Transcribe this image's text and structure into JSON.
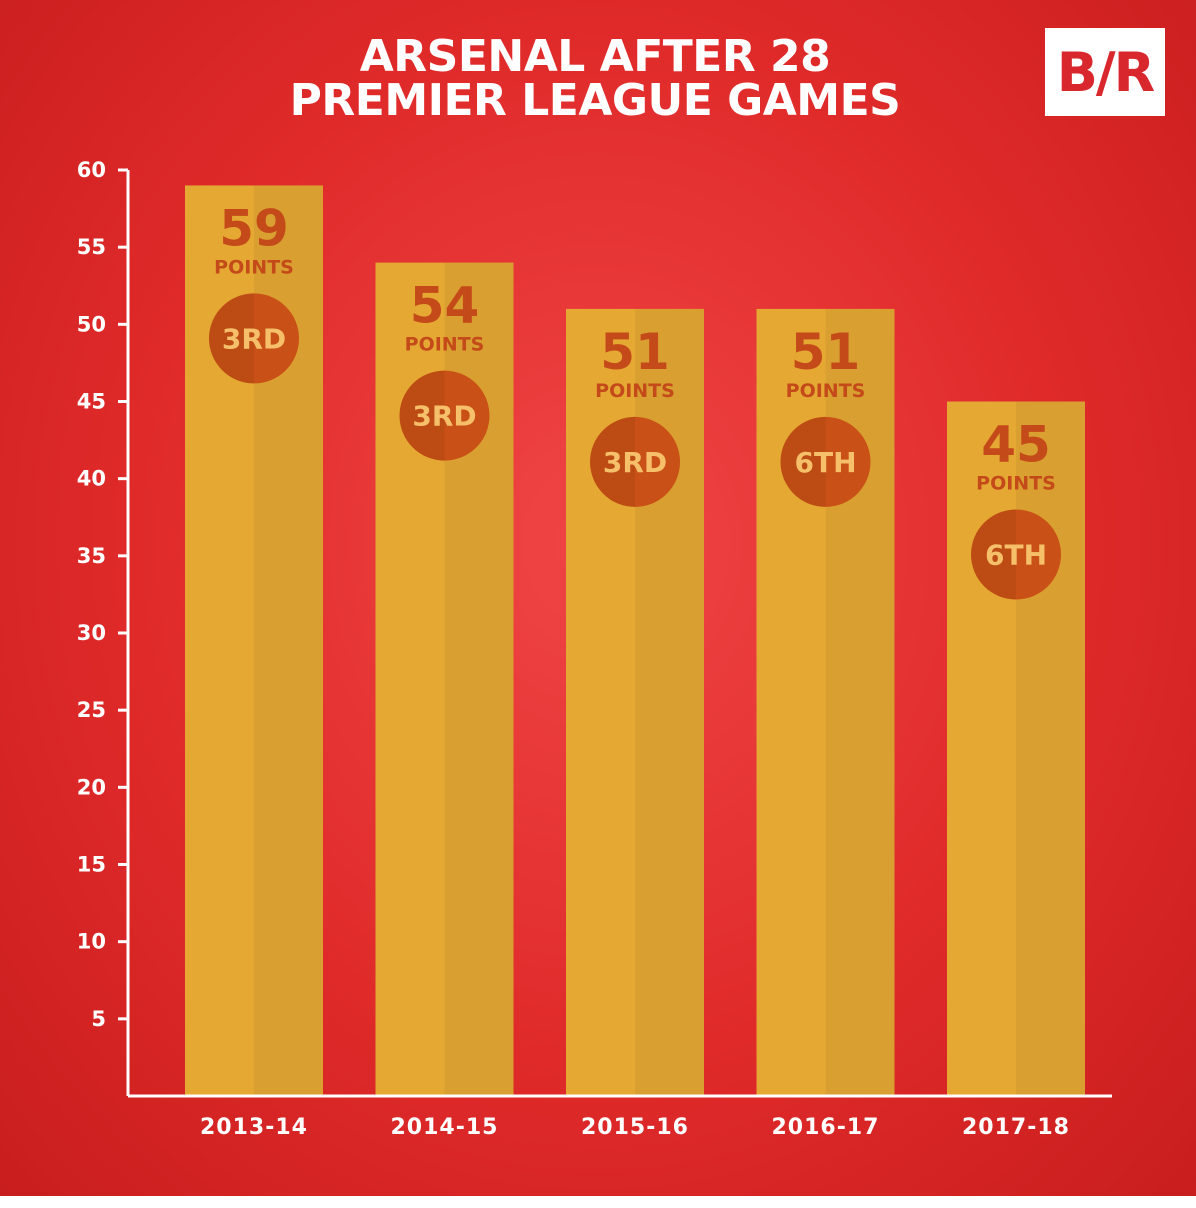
{
  "title": {
    "line1": "ARSENAL AFTER 28",
    "line2": "PREMIER LEAGUE GAMES"
  },
  "logo": {
    "text": "B/R"
  },
  "colors": {
    "background": "#e53535",
    "bar": "#e5a833",
    "value_text": "#c44a1a",
    "badge": "#c95016",
    "badge_text": "#f6c06a",
    "axis": "#ffffff"
  },
  "chart_data": {
    "type": "bar",
    "title": "ARSENAL AFTER 28 PREMIER LEAGUE GAMES",
    "categories": [
      "2013-14",
      "2014-15",
      "2015-16",
      "2016-17",
      "2017-18"
    ],
    "values": [
      59,
      54,
      51,
      51,
      45
    ],
    "value_unit": "POINTS",
    "positions": [
      "3RD",
      "3RD",
      "3RD",
      "6TH",
      "6TH"
    ],
    "xlabel": "",
    "ylabel": "",
    "ylim": [
      0,
      60
    ],
    "yticks": [
      5,
      10,
      15,
      20,
      25,
      30,
      35,
      40,
      45,
      50,
      55,
      60
    ],
    "grid": false,
    "legend": "none"
  }
}
